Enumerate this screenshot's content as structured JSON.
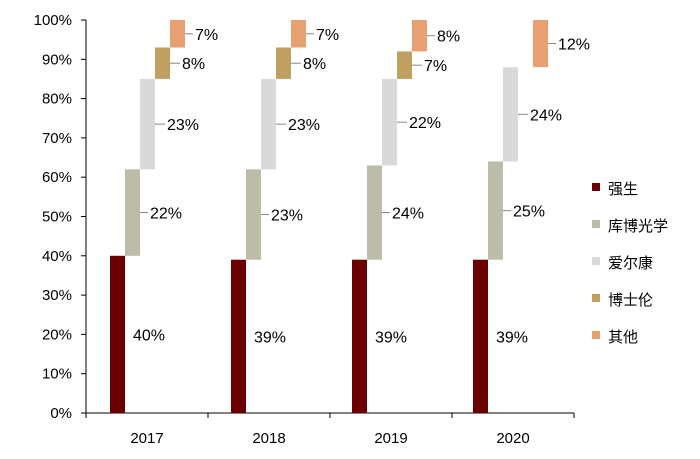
{
  "chart_data": {
    "type": "bar",
    "variant": "waterfall-stacked",
    "categories": [
      "2017",
      "2018",
      "2019",
      "2020"
    ],
    "series": [
      {
        "name": "强生",
        "color": "#6b0000",
        "values": [
          40,
          39,
          39,
          39
        ]
      },
      {
        "name": "库博光学",
        "color": "#bcbca8",
        "values": [
          22,
          23,
          24,
          25
        ]
      },
      {
        "name": "爱尔康",
        "color": "#d9d9d9",
        "values": [
          23,
          23,
          22,
          24
        ]
      },
      {
        "name": "博士伦",
        "color": "#c0a060",
        "values": [
          8,
          8,
          7,
          0
        ]
      },
      {
        "name": "其他",
        "color": "#e8a070",
        "values": [
          7,
          7,
          8,
          12
        ]
      }
    ],
    "data_labels": [
      [
        "40%",
        "22%",
        "23%",
        "8%",
        "7%"
      ],
      [
        "39%",
        "23%",
        "23%",
        "8%",
        "7%"
      ],
      [
        "39%",
        "24%",
        "22%",
        "7%",
        "8%"
      ],
      [
        "39%",
        "25%",
        "24%",
        "",
        "12%"
      ]
    ],
    "y_ticks": [
      "0%",
      "10%",
      "20%",
      "30%",
      "40%",
      "50%",
      "60%",
      "70%",
      "80%",
      "90%",
      "100%"
    ],
    "ylim": [
      0,
      100
    ],
    "title": "",
    "xlabel": "",
    "ylabel": "",
    "legend_position": "right",
    "grid": false
  }
}
